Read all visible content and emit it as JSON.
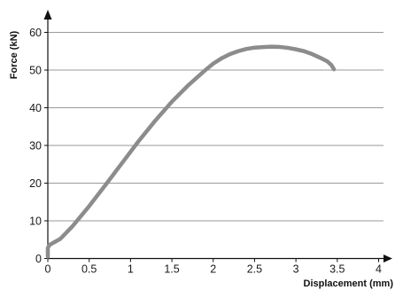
{
  "chart_data": {
    "type": "line",
    "title": "",
    "xlabel": "Displacement (mm)",
    "ylabel": "Force (kN)",
    "xlim": [
      0,
      4
    ],
    "ylim": [
      0,
      60
    ],
    "x_ticks": [
      0,
      0.5,
      1,
      1.5,
      2,
      2.5,
      3,
      3.5,
      4
    ],
    "x_tick_labels": [
      "0",
      "0.5",
      "1",
      "1.5",
      "2",
      "2.5",
      "3",
      "3.5",
      "4"
    ],
    "y_ticks": [
      0,
      10,
      20,
      30,
      40,
      50,
      60
    ],
    "y_tick_labels": [
      "0",
      "10",
      "20",
      "30",
      "40",
      "50",
      "60"
    ],
    "grid": "horizontal",
    "legend": "none",
    "series": [
      {
        "color": "#8c8c8c",
        "x": [
          0,
          0.0,
          0.02,
          0.15,
          0.3,
          0.5,
          0.7,
          0.9,
          1.1,
          1.3,
          1.5,
          1.7,
          1.9,
          2.0,
          2.1,
          2.2,
          2.3,
          2.4,
          2.5,
          2.6,
          2.7,
          2.8,
          2.9,
          3.0,
          3.1,
          3.2,
          3.3,
          3.38,
          3.43,
          3.46
        ],
        "y": [
          0.5,
          2.8,
          3.6,
          5.2,
          8.6,
          13.9,
          19.6,
          25.4,
          31.2,
          36.6,
          41.6,
          46.0,
          49.9,
          51.7,
          53.1,
          54.2,
          55.0,
          55.6,
          55.95,
          56.1,
          56.2,
          56.15,
          55.9,
          55.5,
          55.0,
          54.2,
          53.2,
          52.3,
          51.3,
          50.2
        ]
      }
    ]
  }
}
